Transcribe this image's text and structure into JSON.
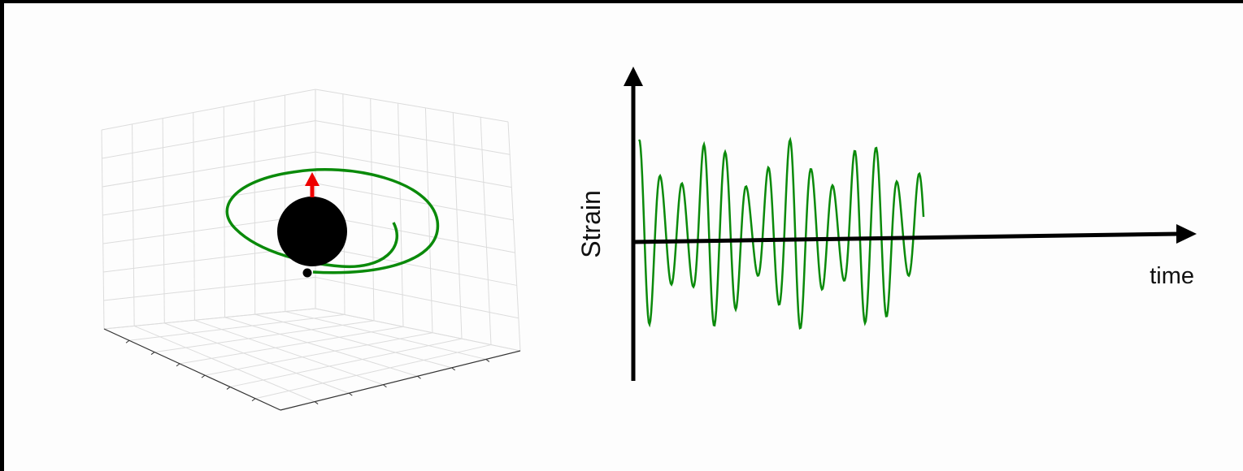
{
  "strain_plot": {
    "y_label": "Strain",
    "x_label": "time"
  }
}
